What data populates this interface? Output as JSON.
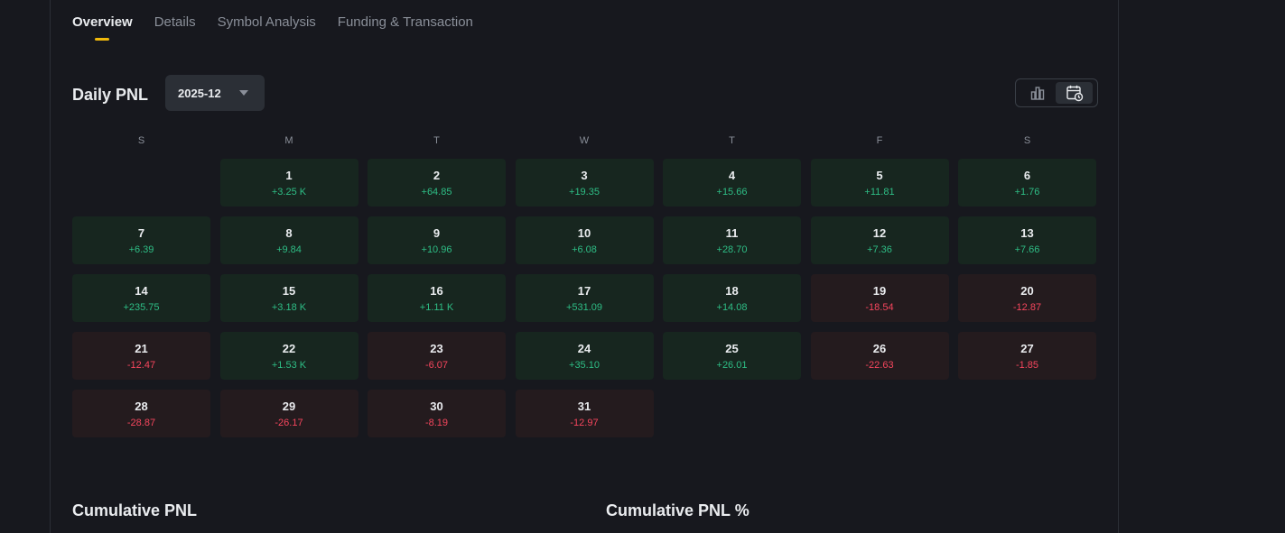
{
  "tabs": [
    {
      "label": "Overview",
      "active": true
    },
    {
      "label": "Details",
      "active": false
    },
    {
      "label": "Symbol Analysis",
      "active": false
    },
    {
      "label": "Funding & Transaction",
      "active": false
    }
  ],
  "daily_pnl": {
    "title": "Daily PNL",
    "month": "2025-12",
    "weekdays": [
      "S",
      "M",
      "T",
      "W",
      "T",
      "F",
      "S"
    ],
    "leading_empty_days": 1,
    "days": [
      {
        "day": "1",
        "pnl": "+3.25 K",
        "sign": "pos"
      },
      {
        "day": "2",
        "pnl": "+64.85",
        "sign": "pos"
      },
      {
        "day": "3",
        "pnl": "+19.35",
        "sign": "pos"
      },
      {
        "day": "4",
        "pnl": "+15.66",
        "sign": "pos"
      },
      {
        "day": "5",
        "pnl": "+11.81",
        "sign": "pos"
      },
      {
        "day": "6",
        "pnl": "+1.76",
        "sign": "pos"
      },
      {
        "day": "7",
        "pnl": "+6.39",
        "sign": "pos"
      },
      {
        "day": "8",
        "pnl": "+9.84",
        "sign": "pos"
      },
      {
        "day": "9",
        "pnl": "+10.96",
        "sign": "pos"
      },
      {
        "day": "10",
        "pnl": "+6.08",
        "sign": "pos"
      },
      {
        "day": "11",
        "pnl": "+28.70",
        "sign": "pos"
      },
      {
        "day": "12",
        "pnl": "+7.36",
        "sign": "pos"
      },
      {
        "day": "13",
        "pnl": "+7.66",
        "sign": "pos"
      },
      {
        "day": "14",
        "pnl": "+235.75",
        "sign": "pos"
      },
      {
        "day": "15",
        "pnl": "+3.18 K",
        "sign": "pos"
      },
      {
        "day": "16",
        "pnl": "+1.11 K",
        "sign": "pos"
      },
      {
        "day": "17",
        "pnl": "+531.09",
        "sign": "pos"
      },
      {
        "day": "18",
        "pnl": "+14.08",
        "sign": "pos"
      },
      {
        "day": "19",
        "pnl": "-18.54",
        "sign": "neg"
      },
      {
        "day": "20",
        "pnl": "-12.87",
        "sign": "neg"
      },
      {
        "day": "21",
        "pnl": "-12.47",
        "sign": "neg"
      },
      {
        "day": "22",
        "pnl": "+1.53 K",
        "sign": "pos"
      },
      {
        "day": "23",
        "pnl": "-6.07",
        "sign": "neg"
      },
      {
        "day": "24",
        "pnl": "+35.10",
        "sign": "pos"
      },
      {
        "day": "25",
        "pnl": "+26.01",
        "sign": "pos"
      },
      {
        "day": "26",
        "pnl": "-22.63",
        "sign": "neg"
      },
      {
        "day": "27",
        "pnl": "-1.85",
        "sign": "neg"
      },
      {
        "day": "28",
        "pnl": "-28.87",
        "sign": "neg"
      },
      {
        "day": "29",
        "pnl": "-26.17",
        "sign": "neg"
      },
      {
        "day": "30",
        "pnl": "-8.19",
        "sign": "neg"
      },
      {
        "day": "31",
        "pnl": "-12.97",
        "sign": "neg"
      }
    ]
  },
  "cumulative": {
    "pnl_title": "Cumulative PNL",
    "pnl_pct_title": "Cumulative PNL %"
  },
  "colors": {
    "accent": "#f0b90b",
    "positive": "#2ebd85",
    "negative": "#f6465d"
  },
  "icons": {
    "chart_view": "bar-chart-icon",
    "calendar_view": "calendar-icon",
    "dropdown": "caret-down-icon"
  }
}
